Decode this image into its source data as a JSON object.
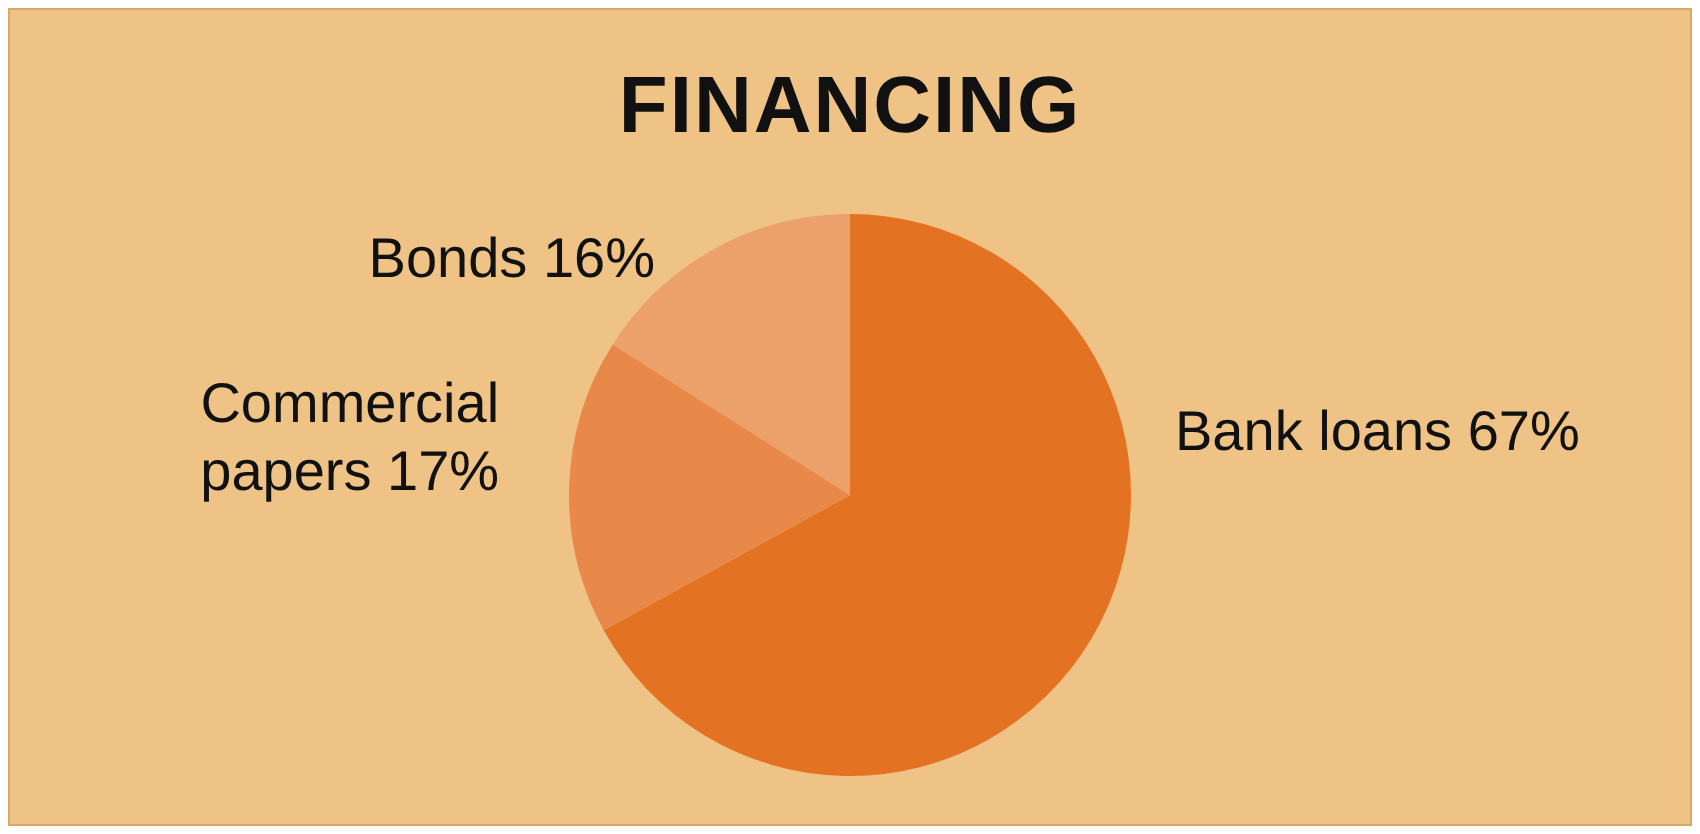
{
  "chart_data": {
    "type": "pie",
    "title": "FINANCING",
    "categories": [
      "Bank loans",
      "Commercial papers",
      "Bonds"
    ],
    "values": [
      67,
      17,
      16
    ],
    "value_labels": [
      "67%",
      "17%",
      "16%"
    ],
    "colors": [
      "#e37222",
      "#e8894a",
      "#eca06a"
    ],
    "legend": false
  }
}
